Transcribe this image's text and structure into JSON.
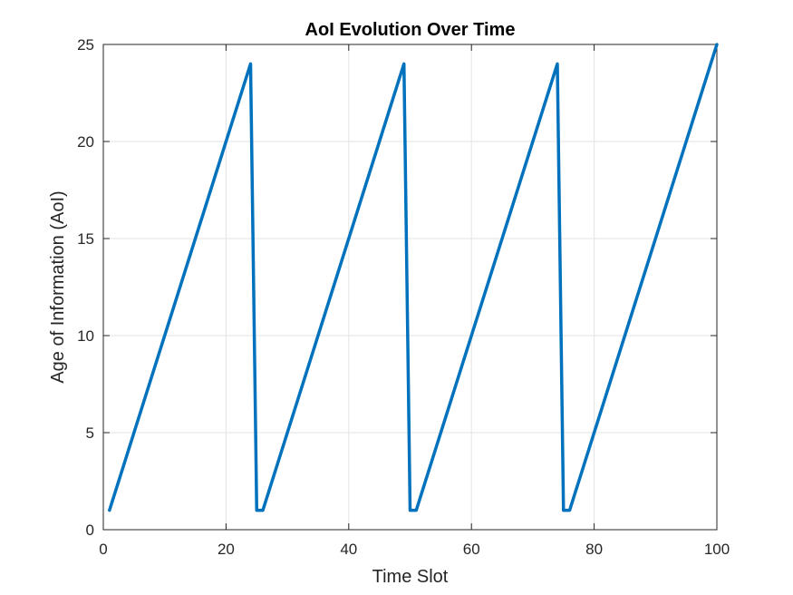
{
  "chart_data": {
    "type": "line",
    "title": "AoI Evolution Over Time",
    "xlabel": "Time Slot",
    "ylabel": "Age of Information (AoI)",
    "xlim": [
      0,
      100
    ],
    "ylim": [
      0,
      25
    ],
    "xticks": [
      0,
      20,
      40,
      60,
      80,
      100
    ],
    "yticks": [
      0,
      5,
      10,
      15,
      20,
      25
    ],
    "grid": true,
    "line_color": "#0072BD",
    "series": [
      {
        "x": [
          1,
          24,
          25,
          26,
          49,
          50,
          51,
          74,
          75,
          76,
          100
        ],
        "y": [
          1,
          24,
          1,
          1,
          24,
          1,
          1,
          24,
          1,
          1,
          25
        ]
      }
    ]
  }
}
